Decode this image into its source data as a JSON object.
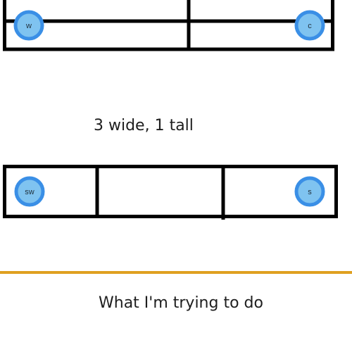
{
  "captions": {
    "grid_caption": "3 wide, 1 tall",
    "bottom_caption": "What I'm trying to do"
  },
  "nodes": {
    "top_left": "w",
    "top_right": "c",
    "bottom_left": "sw",
    "bottom_right": "s"
  },
  "colors": {
    "grid_line": "#000000",
    "node_fill": "#7fc3f0",
    "node_ring": "#3a8fe6",
    "separator": "#dfa020"
  }
}
